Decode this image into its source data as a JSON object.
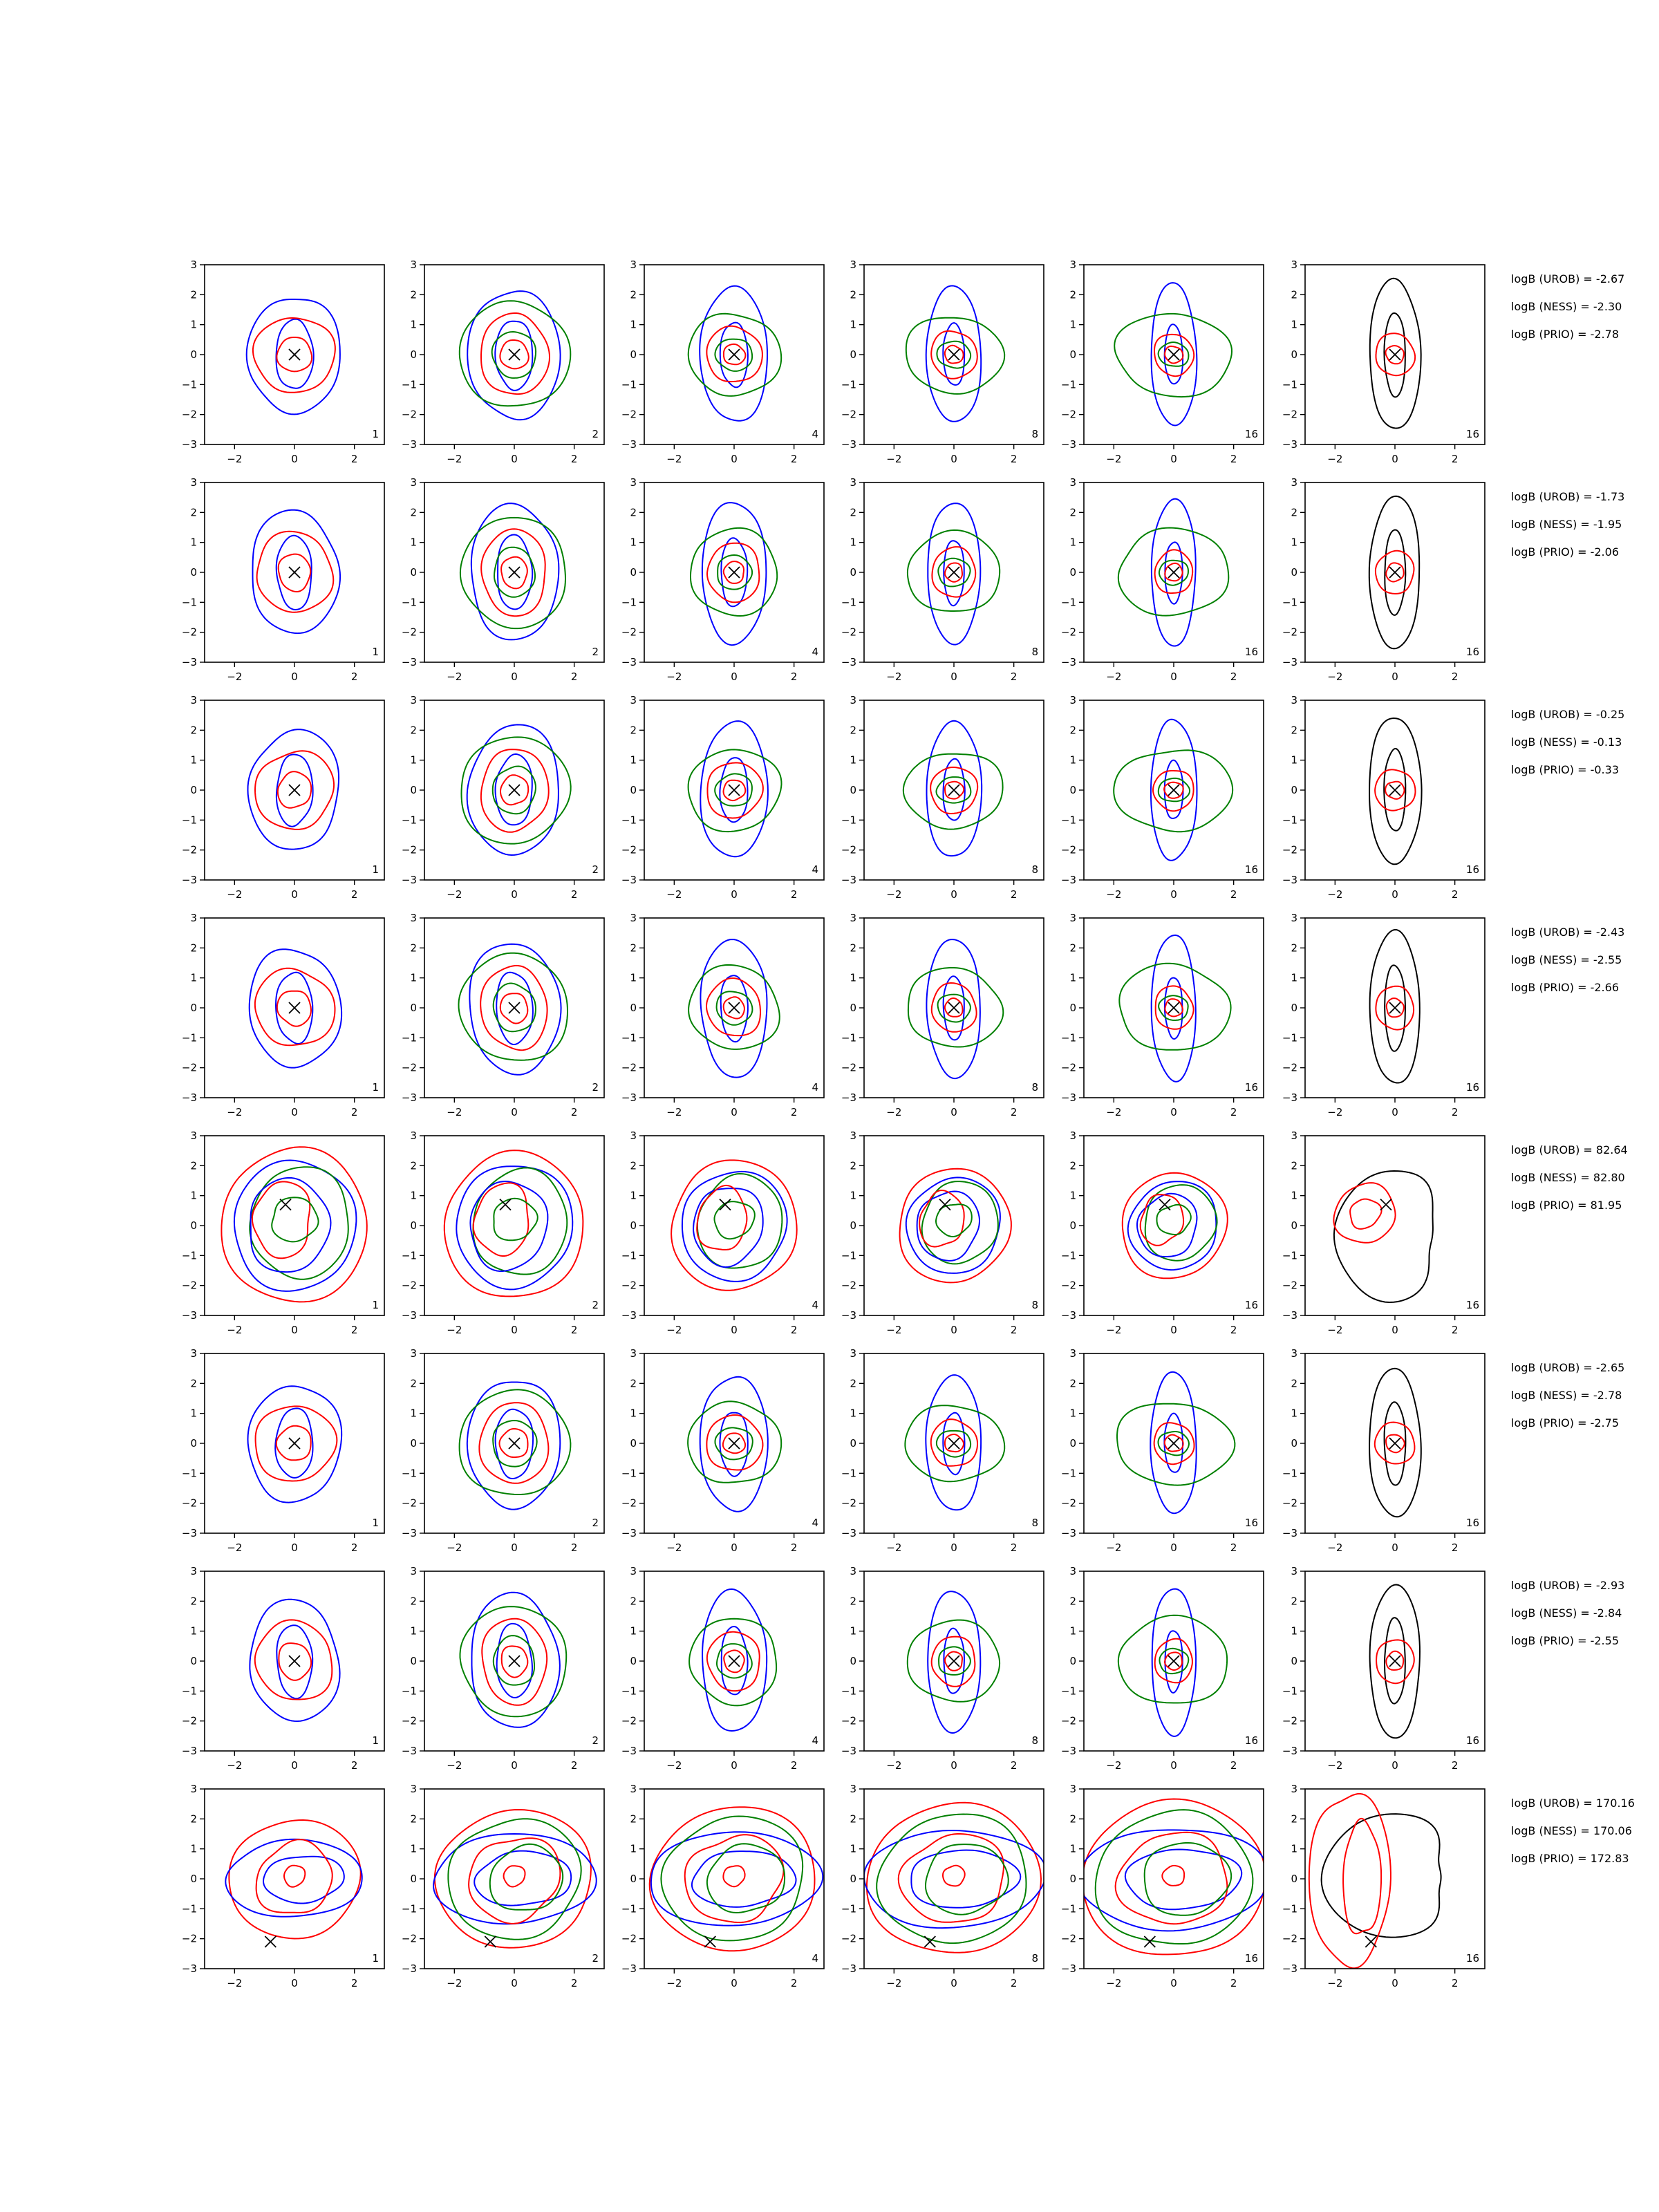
{
  "figure": {
    "colors": {
      "UROB": "#0000ff",
      "NESS": "#008000",
      "PRIO": "#ff0000",
      "reference": "#000000"
    }
  },
  "chart_data": {
    "type": "contour-grid",
    "xlim": [
      -3,
      3
    ],
    "ylim": [
      -3,
      3
    ],
    "x_ticks": [
      "−2",
      "0",
      "2"
    ],
    "y_ticks": [
      "3",
      "2",
      "1",
      "0",
      "−1",
      "−2",
      "−3"
    ],
    "grid": false,
    "columns": [
      {
        "n_label": "1"
      },
      {
        "n_label": "2"
      },
      {
        "n_label": "4"
      },
      {
        "n_label": "8"
      },
      {
        "n_label": "16"
      },
      {
        "n_label": "16"
      }
    ],
    "rows": [
      {
        "marker": [
          0.0,
          0.0
        ],
        "shape": 0,
        "annotations": [
          "logB (UROB) = -2.67",
          "logB (NESS) = -2.30",
          "logB (PRIO) = -2.78"
        ]
      },
      {
        "marker": [
          0.0,
          0.0
        ],
        "shape": 0,
        "annotations": [
          "logB (UROB) = -1.73",
          "logB (NESS) = -1.95",
          "logB (PRIO) = -2.06"
        ]
      },
      {
        "marker": [
          0.0,
          0.0
        ],
        "shape": 0,
        "annotations": [
          "logB (UROB) = -0.25",
          "logB (NESS) = -0.13",
          "logB (PRIO) = -0.33"
        ]
      },
      {
        "marker": [
          0.0,
          0.0
        ],
        "shape": 0,
        "annotations": [
          "logB (UROB) = -2.43",
          "logB (NESS) = -2.55",
          "logB (PRIO) = -2.66"
        ]
      },
      {
        "marker": [
          -0.3,
          0.7
        ],
        "shape": 1,
        "annotations": [
          "logB (UROB) = 82.64",
          "logB (NESS) = 82.80",
          "logB (PRIO) = 81.95"
        ]
      },
      {
        "marker": [
          0.0,
          0.0
        ],
        "shape": 0,
        "annotations": [
          "logB (UROB) = -2.65",
          "logB (NESS) = -2.78",
          "logB (PRIO) = -2.75"
        ]
      },
      {
        "marker": [
          0.0,
          0.0
        ],
        "shape": 0,
        "annotations": [
          "logB (UROB) = -2.93",
          "logB (NESS) = -2.84",
          "logB (PRIO) = -2.55"
        ]
      },
      {
        "marker": [
          -0.8,
          -2.1
        ],
        "shape": 2,
        "annotations": [
          "logB (UROB) = 170.16",
          "logB (NESS) = 170.06",
          "logB (PRIO) = 172.83"
        ]
      }
    ]
  }
}
